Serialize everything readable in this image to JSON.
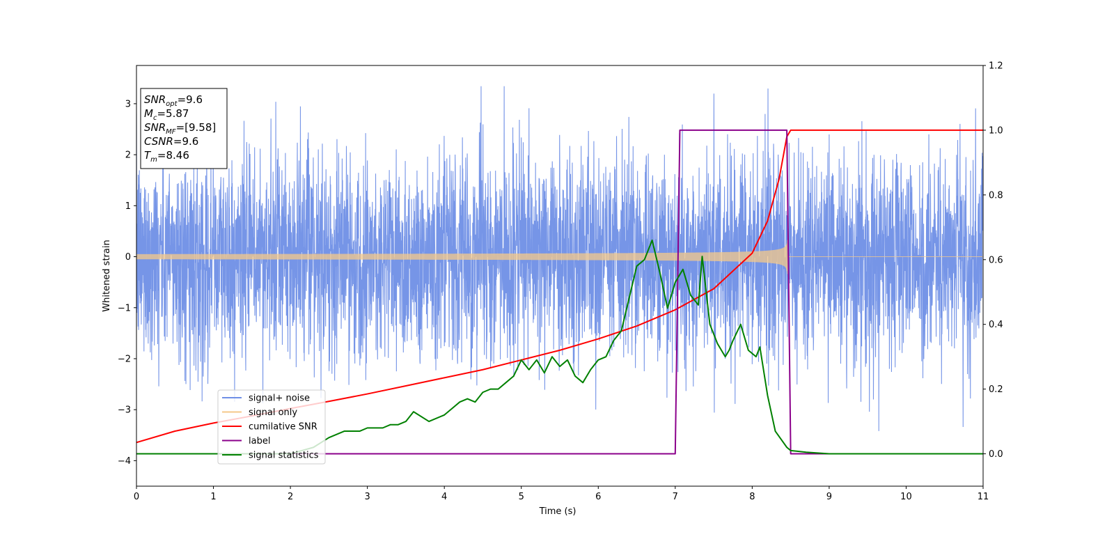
{
  "chart_data": {
    "type": "line",
    "xlabel": "Time (s)",
    "ylabel": "Whitened strain",
    "xlim": [
      0,
      11
    ],
    "ylim_left": [
      -4.5,
      3.75
    ],
    "ylim_right": [
      -0.1,
      1.2
    ],
    "x_ticks": [
      0,
      1,
      2,
      3,
      4,
      5,
      6,
      7,
      8,
      9,
      10,
      11
    ],
    "y_left_ticks": [
      -4,
      -3,
      -2,
      -1,
      0,
      1,
      2,
      3
    ],
    "y_right_ticks": [
      0.0,
      0.2,
      0.4,
      0.6,
      0.8,
      1.0,
      1.2
    ],
    "grid": false,
    "legend_position": "lower-left",
    "annotation": {
      "lines": [
        {
          "main": "SNR",
          "sub": "opt",
          "value": "=9.6"
        },
        {
          "main": "M",
          "sub": "c",
          "value": "=5.87"
        },
        {
          "main": "SNR",
          "sub": "MF",
          "value": "=[9.58]"
        },
        {
          "main": "CSNR",
          "sub": "",
          "value": "=9.6"
        },
        {
          "main": "T",
          "sub": "m",
          "value": "=8.46"
        }
      ]
    },
    "series": [
      {
        "name": "signal+ noise",
        "color": "#6f8fe6",
        "axis": "left",
        "kind": "noise",
        "noise_std": 1.0,
        "peak_min": -4.15,
        "peak_max": 3.38
      },
      {
        "name": "signal only",
        "color": "#f5c98a",
        "axis": "left",
        "kind": "chirp",
        "merger_time": 8.46,
        "amplitude_start": 0.05,
        "amplitude_peak": 0.65
      },
      {
        "name": "cumilative SNR",
        "color": "#ff0000",
        "axis": "right",
        "x": [
          0,
          0.5,
          1,
          1.5,
          2,
          2.5,
          3,
          3.5,
          4,
          4.5,
          5,
          5.5,
          6,
          6.5,
          7,
          7.5,
          8,
          8.2,
          8.35,
          8.45,
          8.5,
          11
        ],
        "y": [
          0.035,
          0.07,
          0.095,
          0.117,
          0.14,
          0.162,
          0.185,
          0.21,
          0.235,
          0.26,
          0.29,
          0.32,
          0.355,
          0.395,
          0.445,
          0.51,
          0.62,
          0.72,
          0.85,
          0.98,
          1.0,
          1.0
        ]
      },
      {
        "name": "label",
        "color": "#8b008b",
        "axis": "right",
        "x": [
          0,
          7.0,
          7.06,
          8.45,
          8.5,
          11
        ],
        "y": [
          0,
          0,
          1,
          1,
          0,
          0
        ]
      },
      {
        "name": "signal statistics",
        "color": "#008000",
        "axis": "right",
        "x": [
          0,
          1,
          2,
          2.3,
          2.5,
          2.7,
          2.9,
          3.0,
          3.2,
          3.3,
          3.4,
          3.5,
          3.6,
          3.8,
          4.0,
          4.1,
          4.2,
          4.3,
          4.4,
          4.5,
          4.6,
          4.7,
          4.8,
          4.9,
          5.0,
          5.1,
          5.2,
          5.3,
          5.4,
          5.5,
          5.6,
          5.7,
          5.8,
          5.9,
          6.0,
          6.1,
          6.2,
          6.3,
          6.4,
          6.5,
          6.6,
          6.7,
          6.8,
          6.9,
          7.0,
          7.1,
          7.2,
          7.3,
          7.35,
          7.45,
          7.55,
          7.65,
          7.7,
          7.75,
          7.85,
          7.95,
          8.05,
          8.1,
          8.2,
          8.3,
          8.45,
          8.5,
          8.7,
          9.0,
          10.0,
          11.0
        ],
        "y": [
          0,
          0,
          0,
          0.02,
          0.05,
          0.07,
          0.07,
          0.08,
          0.08,
          0.09,
          0.09,
          0.1,
          0.13,
          0.1,
          0.12,
          0.14,
          0.16,
          0.17,
          0.16,
          0.19,
          0.2,
          0.2,
          0.22,
          0.24,
          0.29,
          0.26,
          0.29,
          0.25,
          0.3,
          0.27,
          0.29,
          0.24,
          0.22,
          0.26,
          0.29,
          0.3,
          0.35,
          0.38,
          0.48,
          0.58,
          0.6,
          0.66,
          0.56,
          0.45,
          0.53,
          0.57,
          0.49,
          0.46,
          0.61,
          0.4,
          0.34,
          0.3,
          0.32,
          0.35,
          0.4,
          0.32,
          0.3,
          0.33,
          0.18,
          0.07,
          0.02,
          0.01,
          0.005,
          0.0,
          0.0,
          0.0
        ]
      }
    ]
  }
}
